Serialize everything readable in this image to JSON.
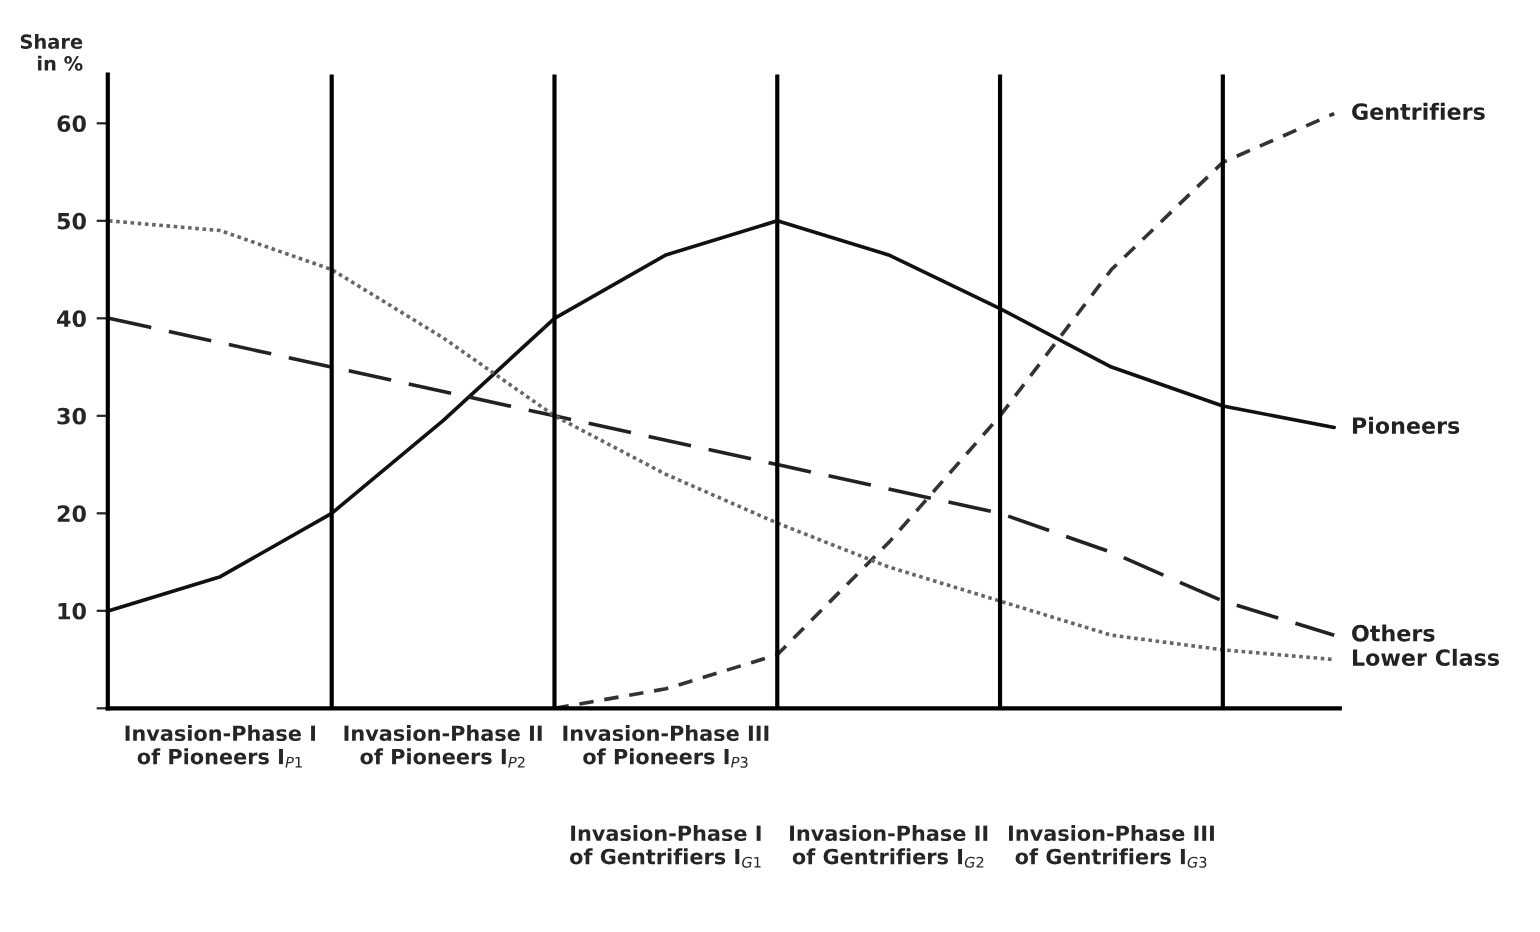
{
  "chart_data": {
    "type": "line",
    "ylabel": "Share\nin %",
    "categories": [
      null,
      "Invasion-Phase I\nof Pioneers I$_{P1}$",
      null,
      "Invasion-Phase II\nof Pioneers I$_{P2}$",
      null,
      "Invasion-Phase III\nof Pioneers I$_{P3}$",
      null,
      null,
      null,
      null,
      null,
      null
    ],
    "series": [
      {
        "name": "Gentrifiers",
        "color": "#333333",
        "line_style": "dashed",
        "values": [
          null,
          null,
          null,
          null,
          0,
          2,
          5.5,
          17,
          30,
          45,
          56,
          61
        ]
      },
      {
        "name": "Pioneers",
        "color": "#111111",
        "line_style": "solid",
        "values": [
          10,
          13.5,
          20,
          29.5,
          40,
          46.5,
          50,
          46.5,
          41,
          35,
          31,
          28.8
        ]
      },
      {
        "name": "Others",
        "color": "#222222",
        "line_style": "longdash",
        "values": [
          40,
          37.5,
          35,
          32.5,
          30,
          27.5,
          25,
          22.5,
          20,
          16,
          11,
          7.5
        ]
      },
      {
        "name": "Lower Class",
        "color": "#666666",
        "line_style": "dotted",
        "values": [
          50,
          49,
          45,
          38,
          30,
          24,
          19,
          14.5,
          11,
          7.5,
          6,
          5
        ]
      }
    ],
    "ylim": [
      0,
      65
    ],
    "yticks": [
      {
        "value": 0,
        "label": null
      },
      10,
      20,
      30,
      40,
      50,
      60
    ],
    "annotations": [
      "Invasion-Phase I\nof Gentrifiers I$_{G1}$",
      "Invasion-Phase II\nof Gentrifiers I$_{G2}$",
      "Invasion-Phase III\nof Gentrifiers I$_{G3}$"
    ],
    "grid": "x",
    "legend": false,
    "marker": "none"
  }
}
